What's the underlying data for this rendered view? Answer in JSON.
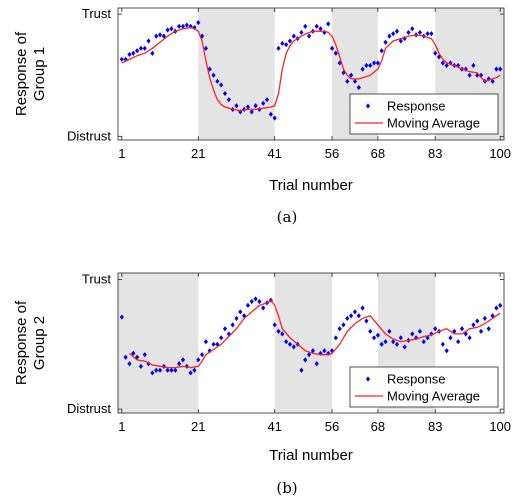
{
  "chart_data": [
    {
      "type": "scatter",
      "caption": "(a)",
      "xlabel": "Trial number",
      "ylabel_lines": [
        "Response of",
        "Group 1"
      ],
      "xlim": [
        0,
        101
      ],
      "ylim": [
        -0.03,
        1.05
      ],
      "xticks": [
        1,
        21,
        41,
        56,
        68,
        83,
        100
      ],
      "yticks": [
        {
          "value": 0,
          "label": "Distrust"
        },
        {
          "value": 1,
          "label": "Trust"
        }
      ],
      "shaded_regions": [
        [
          21,
          41
        ],
        [
          56,
          68
        ],
        [
          83,
          101
        ]
      ],
      "legend": {
        "placement": "bottom-right",
        "entries": [
          "Response",
          "Moving Average"
        ]
      },
      "series": [
        {
          "name": "Response",
          "style": "diamond-marker",
          "color": "#0000ff",
          "x": [
            1,
            2,
            3,
            4,
            5,
            6,
            7,
            8,
            9,
            10,
            11,
            12,
            13,
            14,
            15,
            16,
            17,
            18,
            19,
            20,
            21,
            22,
            23,
            24,
            25,
            26,
            27,
            28,
            29,
            30,
            31,
            32,
            33,
            34,
            35,
            36,
            37,
            38,
            39,
            40,
            41,
            42,
            43,
            44,
            45,
            46,
            47,
            48,
            49,
            50,
            51,
            52,
            53,
            54,
            55,
            56,
            57,
            58,
            59,
            60,
            61,
            62,
            63,
            64,
            65,
            66,
            67,
            68,
            69,
            70,
            71,
            72,
            73,
            74,
            75,
            76,
            77,
            78,
            79,
            80,
            81,
            82,
            83,
            84,
            85,
            86,
            87,
            88,
            89,
            90,
            91,
            92,
            93,
            94,
            95,
            96,
            97,
            98,
            99,
            100
          ],
          "y": [
            0.63,
            0.63,
            0.67,
            0.68,
            0.7,
            0.72,
            0.72,
            0.78,
            0.68,
            0.82,
            0.83,
            0.82,
            0.87,
            0.88,
            0.86,
            0.9,
            0.9,
            0.91,
            0.9,
            0.89,
            0.93,
            0.82,
            0.72,
            0.55,
            0.5,
            0.45,
            0.42,
            0.35,
            0.3,
            0.22,
            0.25,
            0.2,
            0.22,
            0.24,
            0.2,
            0.25,
            0.22,
            0.27,
            0.3,
            0.18,
            0.15,
            0.72,
            0.76,
            0.75,
            0.78,
            0.82,
            0.8,
            0.85,
            0.9,
            0.82,
            0.86,
            0.9,
            0.88,
            0.85,
            0.92,
            0.72,
            0.68,
            0.6,
            0.52,
            0.45,
            0.5,
            0.45,
            0.4,
            0.55,
            0.58,
            0.58,
            0.6,
            0.6,
            0.7,
            0.77,
            0.82,
            0.84,
            0.86,
            0.78,
            0.8,
            0.85,
            0.88,
            0.83,
            0.85,
            0.82,
            0.84,
            0.84,
            0.68,
            0.65,
            0.6,
            0.58,
            0.6,
            0.58,
            0.58,
            0.55,
            0.55,
            0.5,
            0.58,
            0.5,
            0.5,
            0.45,
            0.47,
            0.45,
            0.55,
            0.55
          ]
        },
        {
          "name": "Moving Average",
          "style": "line",
          "color": "#ff2020",
          "x": [
            1,
            3,
            5,
            7,
            9,
            11,
            13,
            15,
            17,
            19,
            20,
            21,
            22,
            23,
            24,
            25,
            26,
            27,
            28,
            30,
            32,
            34,
            36,
            38,
            40,
            41,
            42,
            43,
            44,
            45,
            46,
            48,
            50,
            52,
            54,
            55,
            56,
            57,
            58,
            59,
            60,
            61,
            62,
            63,
            64,
            66,
            68,
            69,
            70,
            72,
            74,
            76,
            78,
            80,
            82,
            83,
            84,
            85,
            86,
            88,
            90,
            92,
            94,
            95,
            96,
            98,
            99,
            100
          ],
          "y": [
            0.6,
            0.63,
            0.66,
            0.68,
            0.72,
            0.77,
            0.82,
            0.86,
            0.88,
            0.89,
            0.88,
            0.86,
            0.78,
            0.62,
            0.48,
            0.38,
            0.3,
            0.26,
            0.24,
            0.22,
            0.21,
            0.22,
            0.22,
            0.23,
            0.24,
            0.25,
            0.35,
            0.55,
            0.68,
            0.74,
            0.78,
            0.82,
            0.85,
            0.86,
            0.86,
            0.85,
            0.82,
            0.75,
            0.65,
            0.55,
            0.5,
            0.47,
            0.47,
            0.47,
            0.48,
            0.5,
            0.55,
            0.62,
            0.72,
            0.78,
            0.8,
            0.82,
            0.83,
            0.82,
            0.8,
            0.75,
            0.68,
            0.63,
            0.6,
            0.58,
            0.55,
            0.53,
            0.52,
            0.48,
            0.45,
            0.47,
            0.48,
            0.5
          ]
        }
      ]
    },
    {
      "type": "scatter",
      "caption": "(b)",
      "xlabel": "Trial number",
      "ylabel_lines": [
        "Response of",
        "Group 2"
      ],
      "xlim": [
        0,
        101
      ],
      "ylim": [
        -0.03,
        1.05
      ],
      "xticks": [
        1,
        21,
        41,
        56,
        68,
        83,
        100
      ],
      "yticks": [
        {
          "value": 0,
          "label": "Distrust"
        },
        {
          "value": 1,
          "label": "Trust"
        }
      ],
      "shaded_regions": [
        [
          0,
          21
        ],
        [
          41,
          56
        ],
        [
          68,
          83
        ]
      ],
      "legend": {
        "placement": "bottom-right",
        "entries": [
          "Response",
          "Moving Average"
        ]
      },
      "series": [
        {
          "name": "Response",
          "style": "diamond-marker",
          "color": "#0000ff",
          "x": [
            1,
            2,
            3,
            4,
            5,
            6,
            7,
            8,
            9,
            10,
            11,
            12,
            13,
            14,
            15,
            16,
            17,
            18,
            19,
            20,
            21,
            22,
            23,
            24,
            25,
            26,
            27,
            28,
            29,
            30,
            31,
            32,
            33,
            34,
            35,
            36,
            37,
            38,
            39,
            40,
            41,
            42,
            43,
            44,
            45,
            46,
            47,
            48,
            49,
            50,
            51,
            52,
            53,
            54,
            55,
            56,
            57,
            58,
            59,
            60,
            61,
            62,
            63,
            64,
            65,
            66,
            67,
            68,
            69,
            70,
            71,
            72,
            73,
            74,
            75,
            76,
            77,
            78,
            79,
            80,
            81,
            82,
            83,
            84,
            85,
            86,
            87,
            88,
            89,
            90,
            91,
            92,
            93,
            94,
            95,
            96,
            97,
            98,
            99,
            100
          ],
          "y": [
            0.71,
            0.4,
            0.35,
            0.43,
            0.4,
            0.33,
            0.42,
            0.35,
            0.28,
            0.3,
            0.3,
            0.33,
            0.3,
            0.3,
            0.3,
            0.35,
            0.38,
            0.33,
            0.28,
            0.3,
            0.38,
            0.42,
            0.52,
            0.45,
            0.5,
            0.5,
            0.55,
            0.62,
            0.58,
            0.65,
            0.7,
            0.75,
            0.72,
            0.8,
            0.83,
            0.85,
            0.83,
            0.78,
            0.82,
            0.84,
            0.65,
            0.6,
            0.58,
            0.52,
            0.5,
            0.48,
            0.5,
            0.3,
            0.38,
            0.42,
            0.45,
            0.35,
            0.43,
            0.45,
            0.43,
            0.45,
            0.55,
            0.62,
            0.65,
            0.7,
            0.72,
            0.75,
            0.72,
            0.78,
            0.68,
            0.6,
            0.55,
            0.57,
            0.5,
            0.52,
            0.6,
            0.52,
            0.5,
            0.55,
            0.48,
            0.53,
            0.58,
            0.55,
            0.6,
            0.52,
            0.55,
            0.58,
            0.62,
            0.6,
            0.5,
            0.45,
            0.55,
            0.6,
            0.52,
            0.62,
            0.58,
            0.55,
            0.65,
            0.68,
            0.6,
            0.7,
            0.62,
            0.72,
            0.78,
            0.8
          ]
        },
        {
          "name": "Moving Average",
          "style": "line",
          "color": "#ff2020",
          "x": [
            3,
            5,
            7,
            9,
            11,
            13,
            15,
            17,
            19,
            21,
            22,
            23,
            25,
            27,
            29,
            31,
            33,
            35,
            37,
            39,
            40,
            41,
            42,
            43,
            45,
            47,
            49,
            51,
            53,
            55,
            56,
            58,
            60,
            62,
            64,
            66,
            68,
            70,
            72,
            74,
            76,
            78,
            80,
            82,
            84,
            86,
            88,
            90,
            92,
            94,
            96,
            98,
            100
          ],
          "y": [
            0.43,
            0.38,
            0.37,
            0.34,
            0.33,
            0.32,
            0.32,
            0.33,
            0.32,
            0.33,
            0.37,
            0.42,
            0.46,
            0.5,
            0.56,
            0.62,
            0.7,
            0.75,
            0.8,
            0.82,
            0.84,
            0.8,
            0.72,
            0.62,
            0.55,
            0.5,
            0.45,
            0.43,
            0.42,
            0.42,
            0.43,
            0.5,
            0.6,
            0.66,
            0.7,
            0.72,
            0.65,
            0.58,
            0.54,
            0.52,
            0.53,
            0.54,
            0.56,
            0.57,
            0.6,
            0.62,
            0.58,
            0.58,
            0.62,
            0.63,
            0.66,
            0.7,
            0.74
          ]
        }
      ]
    }
  ]
}
